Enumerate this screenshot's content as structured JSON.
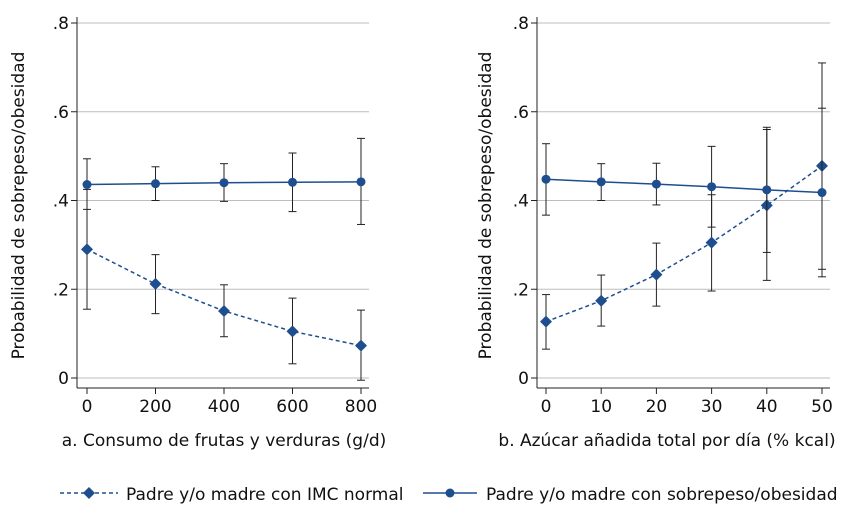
{
  "colors": {
    "series": "#1f4e8f",
    "grid": "#bdbdbd",
    "axis": "#222222",
    "error_bar": "#222222"
  },
  "legend": {
    "items": [
      {
        "label": "Padre y/o madre con IMC normal",
        "marker": "diamond",
        "line": "dashed"
      },
      {
        "label": "Padre y/o madre con sobrepeso/obesidad",
        "marker": "circle",
        "line": "solid"
      }
    ],
    "placement": "bottom"
  },
  "chart_data": [
    {
      "type": "line",
      "title": "",
      "xlabel": "a. Consumo de frutas y verduras (g/d)",
      "ylabel": "Probabilidad de sobrepeso/obesidad",
      "x": [
        0,
        200,
        400,
        600,
        800
      ],
      "xlim": [
        0,
        800
      ],
      "ylim": [
        0,
        0.8
      ],
      "xticks": [
        "0",
        "200",
        "400",
        "600",
        "800"
      ],
      "yticks": [
        "0",
        ".2",
        ".4",
        ".6",
        ".8"
      ],
      "grid": true,
      "series": [
        {
          "name": "Padre y/o madre con IMC normal",
          "marker": "diamond",
          "line": "dashed",
          "values": [
            0.29,
            0.212,
            0.151,
            0.105,
            0.073
          ],
          "ci_low": [
            0.155,
            0.145,
            0.093,
            0.032,
            -0.005
          ],
          "ci_high": [
            0.425,
            0.278,
            0.21,
            0.18,
            0.153
          ]
        },
        {
          "name": "Padre y/o madre con sobrepeso/obesidad",
          "marker": "circle",
          "line": "solid",
          "values": [
            0.436,
            0.438,
            0.44,
            0.441,
            0.442
          ],
          "ci_low": [
            0.38,
            0.4,
            0.398,
            0.375,
            0.346
          ],
          "ci_high": [
            0.494,
            0.476,
            0.483,
            0.507,
            0.54
          ]
        }
      ]
    },
    {
      "type": "line",
      "title": "",
      "xlabel": "b. Azúcar añadida total por día (% kcal)",
      "ylabel": "Probabilidad de sobrepeso/obesidad",
      "x": [
        0,
        10,
        20,
        30,
        40,
        50
      ],
      "xlim": [
        0,
        50
      ],
      "ylim": [
        0,
        0.8
      ],
      "xticks": [
        "0",
        "10",
        "20",
        "30",
        "40",
        "50"
      ],
      "yticks": [
        "0",
        ".2",
        ".4",
        ".6",
        ".8"
      ],
      "grid": true,
      "series": [
        {
          "name": "Padre y/o madre con IMC normal",
          "marker": "diamond",
          "line": "dashed",
          "values": [
            0.127,
            0.174,
            0.233,
            0.305,
            0.389,
            0.478
          ],
          "ci_low": [
            0.065,
            0.117,
            0.162,
            0.196,
            0.22,
            0.245
          ],
          "ci_high": [
            0.188,
            0.232,
            0.304,
            0.413,
            0.56,
            0.71
          ]
        },
        {
          "name": "Padre y/o madre con sobrepeso/obesidad",
          "marker": "circle",
          "line": "solid",
          "values": [
            0.448,
            0.442,
            0.437,
            0.431,
            0.424,
            0.418
          ],
          "ci_low": [
            0.367,
            0.4,
            0.39,
            0.34,
            0.283,
            0.228
          ],
          "ci_high": [
            0.528,
            0.483,
            0.484,
            0.522,
            0.565,
            0.608
          ]
        }
      ]
    }
  ]
}
